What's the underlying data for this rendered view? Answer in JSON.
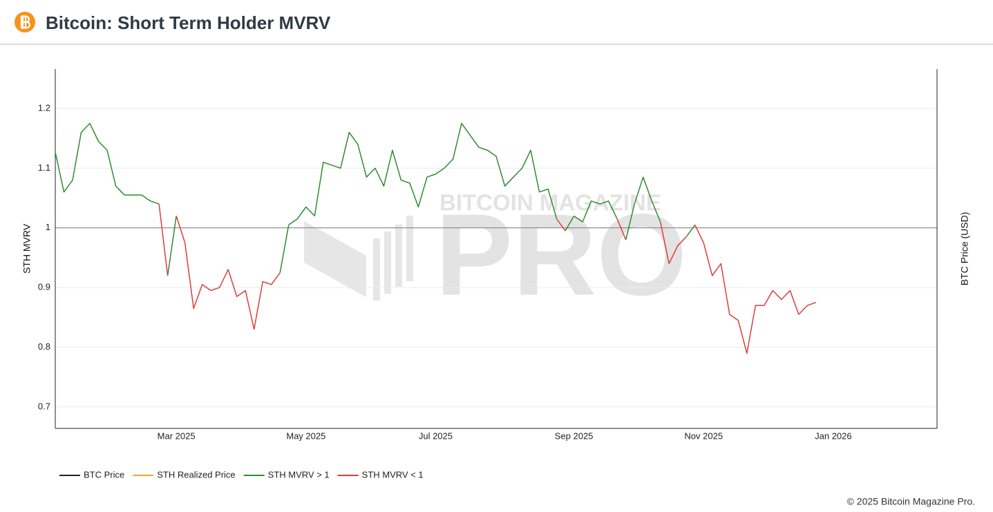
{
  "chart_data": {
    "type": "line",
    "title": "Bitcoin: Short Term Holder MVRV",
    "y_label": "STH MVRV",
    "y2_label": "BTC Price (USD)",
    "watermark_top": "BITCOIN MAGAZINE",
    "watermark": "PRO",
    "footer": "© 2025 Bitcoin Magazine Pro.",
    "categories": [
      null,
      null,
      null,
      null,
      null,
      null,
      null,
      null,
      null,
      null,
      null,
      null,
      null,
      null,
      "Mar 2025",
      null,
      null,
      null,
      null,
      null,
      null,
      null,
      null,
      null,
      null,
      null,
      null,
      null,
      null,
      "May 2025",
      null,
      null,
      null,
      null,
      null,
      null,
      null,
      null,
      null,
      null,
      null,
      null,
      null,
      null,
      "Jul 2025",
      null,
      null,
      null,
      null,
      null,
      null,
      null,
      null,
      null,
      null,
      null,
      null,
      null,
      null,
      null,
      "Sep 2025",
      null,
      null,
      null,
      null,
      null,
      null,
      null,
      null,
      null,
      null,
      null,
      null,
      null,
      null,
      "Nov 2025",
      null,
      null,
      null,
      null,
      null,
      null,
      null,
      null,
      null,
      null,
      null,
      null,
      null,
      null,
      "Jan 2026",
      null,
      null,
      null,
      null,
      null,
      null,
      null,
      null,
      null,
      null,
      null,
      null
    ],
    "ylim": [
      0.664,
      1.266
    ],
    "yticks": [
      0.7,
      0.8,
      0.9,
      1,
      1.1,
      1.2
    ],
    "threshold": 1,
    "grid": true,
    "series": [
      {
        "name": "BTC Price",
        "color": "#222222",
        "axis": "y2",
        "values": [
          null,
          null,
          null,
          null,
          null,
          null,
          null,
          null,
          null,
          null,
          null,
          null,
          null,
          null,
          null,
          null,
          null,
          null,
          null,
          null,
          null,
          null,
          null,
          null,
          null,
          null,
          null,
          null,
          null,
          null,
          null,
          null,
          null,
          null,
          null,
          null,
          null,
          null,
          null,
          null,
          null,
          null,
          null,
          null,
          null,
          null,
          null,
          null,
          null,
          null,
          null,
          null,
          null,
          null,
          null,
          null,
          null,
          null,
          null,
          null,
          null,
          null,
          null,
          null,
          null,
          null,
          null,
          null,
          null,
          null,
          null,
          null,
          null,
          null,
          null,
          null,
          null,
          null,
          null,
          null,
          null,
          null,
          null,
          null,
          null,
          null,
          null,
          null,
          null,
          null,
          null,
          null,
          null,
          null,
          null,
          null,
          null,
          null,
          null,
          null,
          null,
          null,
          null
        ]
      },
      {
        "name": "STH Realized Price",
        "color": "#f5a623",
        "axis": "y2",
        "values": [
          null,
          null,
          null,
          null,
          null,
          null,
          null,
          null,
          null,
          null,
          null,
          null,
          null,
          null,
          null,
          null,
          null,
          null,
          null,
          null,
          null,
          null,
          null,
          null,
          null,
          null,
          null,
          null,
          null,
          null,
          null,
          null,
          null,
          null,
          null,
          null,
          null,
          null,
          null,
          null,
          null,
          null,
          null,
          null,
          null,
          null,
          null,
          null,
          null,
          null,
          null,
          null,
          null,
          null,
          null,
          null,
          null,
          null,
          null,
          null,
          null,
          null,
          null,
          null,
          null,
          null,
          null,
          null,
          null,
          null,
          null,
          null,
          null,
          null,
          null,
          null,
          null,
          null,
          null,
          null,
          null,
          null,
          null,
          null,
          null,
          null,
          null,
          null,
          null,
          null,
          null,
          null,
          null,
          null,
          null,
          null,
          null,
          null,
          null,
          null,
          null,
          null,
          null
        ]
      },
      {
        "name": "STH MVRV > 1",
        "color": "#2e8b2e",
        "values": [
          1.127,
          1.06,
          1.08,
          1.16,
          1.175,
          1.145,
          1.13,
          1.07,
          1.055,
          1.055,
          1.055,
          1.045,
          1.04,
          null,
          1.02,
          null,
          null,
          null,
          null,
          null,
          null,
          null,
          null,
          null,
          null,
          null,
          null,
          1.005,
          1.015,
          1.035,
          1.02,
          1.11,
          1.105,
          1.1,
          1.16,
          1.14,
          1.085,
          1.1,
          1.07,
          1.13,
          1.08,
          1.075,
          1.035,
          1.085,
          1.09,
          1.1,
          1.115,
          1.175,
          1.155,
          1.135,
          1.13,
          1.12,
          1.07,
          1.085,
          1.1,
          1.13,
          1.06,
          1.065,
          1.015,
          null,
          1.02,
          1.01,
          1.045,
          1.04,
          1.045,
          1.015,
          null,
          1.04,
          1.085,
          1.045,
          1.01,
          null,
          null,
          null,
          1.005,
          null,
          null,
          null,
          null,
          null,
          null,
          null,
          null,
          null,
          null,
          null,
          null,
          null,
          null,
          null,
          null,
          null,
          null,
          null,
          null,
          null,
          null,
          null,
          null,
          null,
          null,
          null,
          null
        ]
      },
      {
        "name": "STH MVRV < 1",
        "color": "#e03b3b",
        "values": [
          null,
          null,
          null,
          null,
          null,
          null,
          null,
          null,
          null,
          null,
          null,
          null,
          null,
          0.92,
          null,
          0.975,
          0.865,
          0.905,
          0.895,
          0.9,
          0.93,
          0.885,
          0.895,
          0.83,
          0.91,
          0.905,
          0.925,
          null,
          null,
          null,
          null,
          null,
          null,
          null,
          null,
          null,
          null,
          null,
          null,
          null,
          null,
          null,
          null,
          null,
          null,
          null,
          null,
          null,
          null,
          null,
          null,
          null,
          null,
          null,
          null,
          null,
          null,
          null,
          null,
          0.995,
          null,
          null,
          null,
          null,
          null,
          null,
          0.98,
          null,
          null,
          null,
          null,
          0.94,
          0.97,
          0.985,
          null,
          0.975,
          0.92,
          0.94,
          0.855,
          0.845,
          0.79,
          0.87,
          0.87,
          0.895,
          0.88,
          0.895,
          0.855,
          0.87,
          0.875,
          null,
          null,
          null,
          null,
          null,
          null,
          null,
          null,
          null,
          null,
          null,
          null,
          null,
          null
        ]
      }
    ]
  }
}
